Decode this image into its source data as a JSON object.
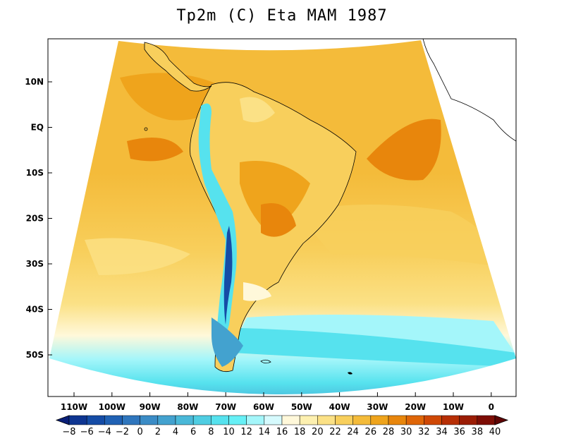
{
  "map": {
    "title": "Tp2m (C) Eta MAM 1987",
    "variable": "Tp2m",
    "units": "C",
    "model": "Eta",
    "season": "MAM",
    "year": "1987",
    "lat_ticks": [
      "10N",
      "EQ",
      "10S",
      "20S",
      "30S",
      "40S",
      "50S"
    ],
    "lon_ticks": [
      "110W",
      "100W",
      "90W",
      "80W",
      "70W",
      "60W",
      "50W",
      "40W",
      "30W",
      "20W",
      "10W",
      "0"
    ]
  },
  "colorbar": {
    "labels": [
      "−8",
      "−6",
      "−4",
      "−2",
      "0",
      "2",
      "4",
      "6",
      "8",
      "10",
      "12",
      "14",
      "16",
      "18",
      "20",
      "22",
      "24",
      "26",
      "28",
      "30",
      "32",
      "34",
      "36",
      "38",
      "40"
    ],
    "colors": [
      "#0a1f78",
      "#0e3591",
      "#154ca6",
      "#2061b4",
      "#2f76bd",
      "#3b8cc6",
      "#43a2cf",
      "#4ab8d8",
      "#4fcde2",
      "#56e2ee",
      "#66f0f6",
      "#a4f6fa",
      "#d6fafd",
      "#fff8da",
      "#fdf0b0",
      "#fbe186",
      "#f8cf5c",
      "#f4bb3a",
      "#efa41c",
      "#e8860c",
      "#df6608",
      "#cf4805",
      "#b72f05",
      "#9b1d05",
      "#7d0d05",
      "#5e0404"
    ]
  }
}
